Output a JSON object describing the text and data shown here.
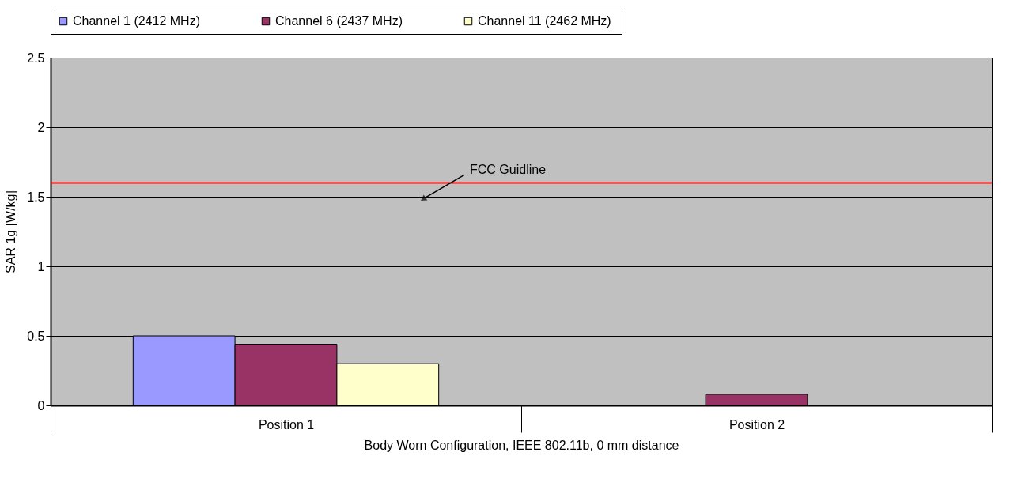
{
  "chart_data": {
    "type": "bar",
    "xlabel": "Body Worn Configuration, IEEE 802.11b,  0 mm distance",
    "ylabel": "SAR 1g [W/kg]",
    "categories": [
      "Position 1",
      "Position 2"
    ],
    "series": [
      {
        "name": "Channel 1 (2412  MHz)",
        "color": "#9999ff",
        "values": [
          0.5,
          null
        ]
      },
      {
        "name": "Channel 6 (2437  MHz)",
        "color": "#993366",
        "values": [
          0.44,
          0.08
        ]
      },
      {
        "name": "Channel 11 (2462  MHz)",
        "color": "#ffffcc",
        "values": [
          0.3,
          null
        ]
      }
    ],
    "ylim": [
      0,
      2.5
    ],
    "yticks": [
      0,
      0.5,
      1,
      1.5,
      2,
      2.5
    ],
    "grid": "y",
    "legend": "top",
    "ref_lines": [
      {
        "axis": "y",
        "value": 1.6,
        "label": "FCC Guidline",
        "color": "#ff0000"
      }
    ]
  }
}
